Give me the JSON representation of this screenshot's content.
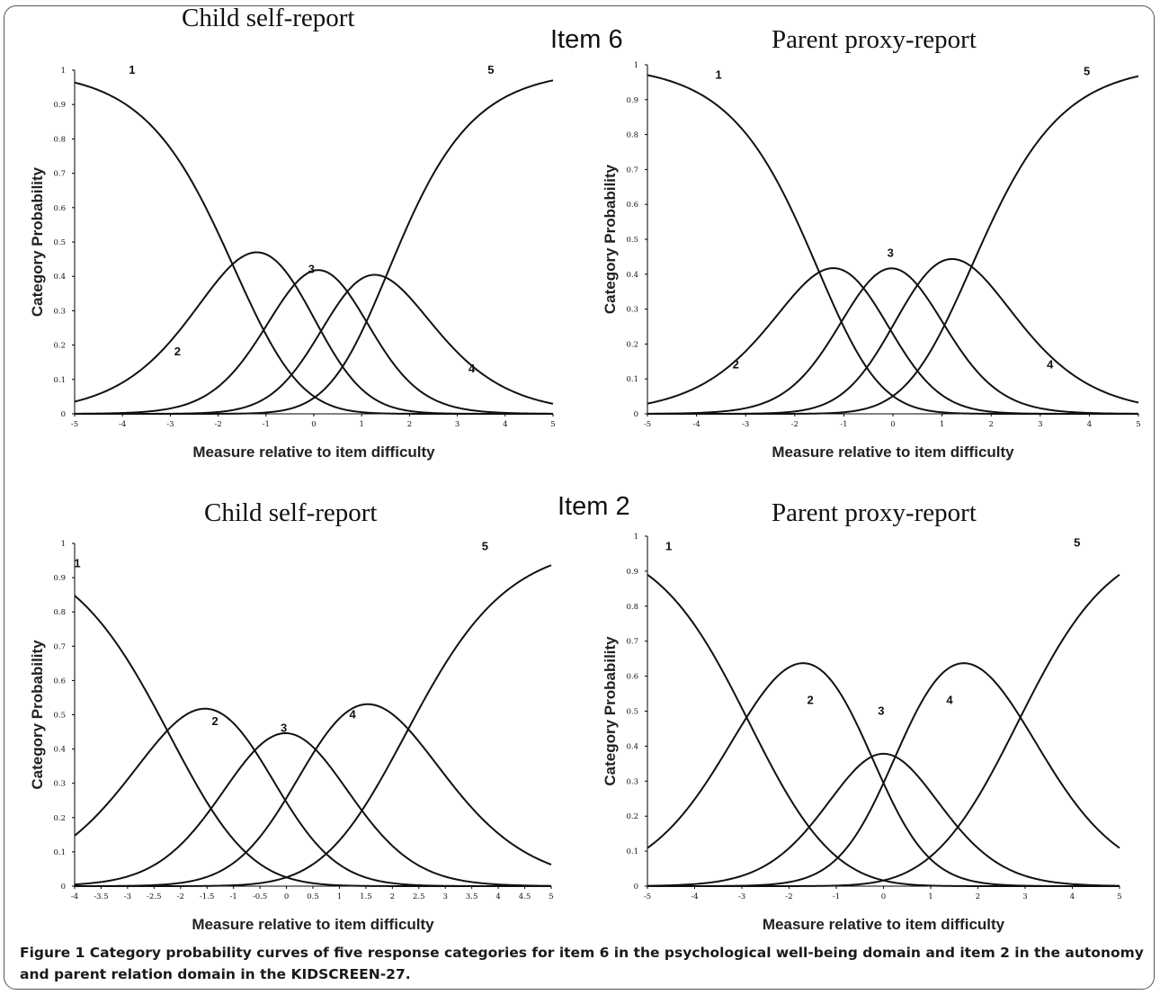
{
  "rows": [
    {
      "label": "Item 6"
    },
    {
      "label": "Item 2"
    }
  ],
  "chart_data": [
    {
      "type": "line",
      "title": "Child self-report",
      "xlabel": "Measure relative to item difficulty",
      "ylabel": "Category Probability",
      "xlim": [
        -5,
        5
      ],
      "ylim": [
        0,
        1
      ],
      "xticks": [
        -5,
        -4,
        -3,
        -2,
        -1,
        0,
        1,
        2,
        3,
        4,
        5
      ],
      "yticks": [
        0,
        0.1,
        0.2,
        0.3,
        0.4,
        0.5,
        0.6,
        0.7,
        0.8,
        0.9,
        1
      ],
      "xtick_labels": [
        "-5",
        "-4",
        "-3",
        "-2",
        "-1",
        "0",
        "1",
        "2",
        "3",
        "4",
        "5"
      ],
      "ytick_labels": [
        "0",
        "0.1",
        "0.2",
        "0.3",
        "0.4",
        "0.5",
        "0.6",
        "0.7",
        "0.8",
        "0.9",
        "1"
      ],
      "thresholds": [
        -1.7,
        -0.4,
        0.7,
        1.5
      ],
      "series": [
        {
          "name": "1",
          "label_at": [
            -3.8,
            0.99
          ]
        },
        {
          "name": "2",
          "label_at": [
            -2.85,
            0.17
          ]
        },
        {
          "name": "3",
          "label_at": [
            -0.05,
            0.41
          ]
        },
        {
          "name": "4",
          "label_at": [
            3.3,
            0.12
          ]
        },
        {
          "name": "5",
          "label_at": [
            3.7,
            0.99
          ]
        }
      ]
    },
    {
      "type": "line",
      "title": "Parent proxy-report",
      "xlabel": "Measure relative to item difficulty",
      "ylabel": "Category Probability",
      "xlim": [
        -5,
        5
      ],
      "ylim": [
        0,
        1
      ],
      "xticks": [
        -5,
        -4,
        -3,
        -2,
        -1,
        0,
        1,
        2,
        3,
        4,
        5
      ],
      "yticks": [
        0,
        0.1,
        0.2,
        0.3,
        0.4,
        0.5,
        0.6,
        0.7,
        0.8,
        0.9,
        1
      ],
      "xtick_labels": [
        "-5",
        "-4",
        "-3",
        "-2",
        "-1",
        "0",
        "1",
        "2",
        "3",
        "4",
        "5"
      ],
      "ytick_labels": [
        "0",
        "0.1",
        "0.2",
        "0.3",
        "0.4",
        "0.5",
        "0.6",
        "0.7",
        "0.8",
        "0.9",
        "1"
      ],
      "thresholds": [
        -1.5,
        -0.6,
        0.5,
        1.6
      ],
      "series": [
        {
          "name": "1",
          "label_at": [
            -3.55,
            0.96
          ]
        },
        {
          "name": "2",
          "label_at": [
            -3.2,
            0.13
          ]
        },
        {
          "name": "3",
          "label_at": [
            -0.05,
            0.45
          ]
        },
        {
          "name": "4",
          "label_at": [
            3.2,
            0.13
          ]
        },
        {
          "name": "5",
          "label_at": [
            3.95,
            0.97
          ]
        }
      ]
    },
    {
      "type": "line",
      "title": "Child self-report",
      "xlabel": "Measure relative to item difficulty",
      "ylabel": "Category Probability",
      "xlim": [
        -4,
        5
      ],
      "ylim": [
        0,
        1
      ],
      "xticks": [
        -4,
        -3.5,
        -3,
        -2.5,
        -2,
        -1.5,
        -1,
        -0.5,
        0,
        0.5,
        1,
        1.5,
        2,
        2.5,
        3,
        3.5,
        4,
        4.5,
        5
      ],
      "yticks": [
        0,
        0.1,
        0.2,
        0.3,
        0.4,
        0.5,
        0.6,
        0.7,
        0.8,
        0.9,
        1
      ],
      "xtick_labels": [
        "-4",
        "-3.5",
        "-3",
        "-2.5",
        "-2",
        "-1.5",
        "-1",
        "-0.5",
        "0",
        "0.5",
        "1",
        "1.5",
        "2",
        "2.5",
        "3",
        "3.5",
        "4",
        "4.5",
        "5"
      ],
      "ytick_labels": [
        "0",
        "0.1",
        "0.2",
        "0.3",
        "0.4",
        "0.5",
        "0.6",
        "0.7",
        "0.8",
        "0.9",
        "1"
      ],
      "thresholds": [
        -2.25,
        -0.6,
        0.55,
        2.3
      ],
      "series": [
        {
          "name": "1",
          "label_at": [
            -3.95,
            0.93
          ]
        },
        {
          "name": "2",
          "label_at": [
            -1.35,
            0.47
          ]
        },
        {
          "name": "3",
          "label_at": [
            -0.05,
            0.45
          ]
        },
        {
          "name": "4",
          "label_at": [
            1.25,
            0.49
          ]
        },
        {
          "name": "5",
          "label_at": [
            3.75,
            0.98
          ]
        }
      ]
    },
    {
      "type": "line",
      "title": "Parent proxy-report",
      "xlabel": "Measure relative to item difficulty",
      "ylabel": "Category Probability",
      "xlim": [
        -5,
        5
      ],
      "ylim": [
        0,
        1
      ],
      "xticks": [
        -5,
        -4,
        -3,
        -2,
        -1,
        0,
        1,
        2,
        3,
        4,
        5
      ],
      "yticks": [
        0,
        0.1,
        0.2,
        0.3,
        0.4,
        0.5,
        0.6,
        0.7,
        0.8,
        0.9,
        1
      ],
      "xtick_labels": [
        "-5",
        "-4",
        "-3",
        "-2",
        "-1",
        "0",
        "1",
        "2",
        "3",
        "4",
        "5"
      ],
      "ytick_labels": [
        "0",
        "0.1",
        "0.2",
        "0.3",
        "0.4",
        "0.5",
        "0.6",
        "0.7",
        "0.8",
        "0.9",
        "1"
      ],
      "thresholds": [
        -2.9,
        -0.25,
        0.25,
        2.9
      ],
      "series": [
        {
          "name": "1",
          "label_at": [
            -4.55,
            0.96
          ]
        },
        {
          "name": "2",
          "label_at": [
            -1.55,
            0.52
          ]
        },
        {
          "name": "3",
          "label_at": [
            -0.05,
            0.49
          ]
        },
        {
          "name": "4",
          "label_at": [
            1.4,
            0.52
          ]
        },
        {
          "name": "5",
          "label_at": [
            4.1,
            0.97
          ]
        }
      ]
    }
  ],
  "caption": {
    "label": "Figure 1",
    "text": " Category probability curves of five response categories for item 6 in the psychological well-being domain and item 2 in the autonomy and parent relation domain in the KIDSCREEN-27."
  }
}
